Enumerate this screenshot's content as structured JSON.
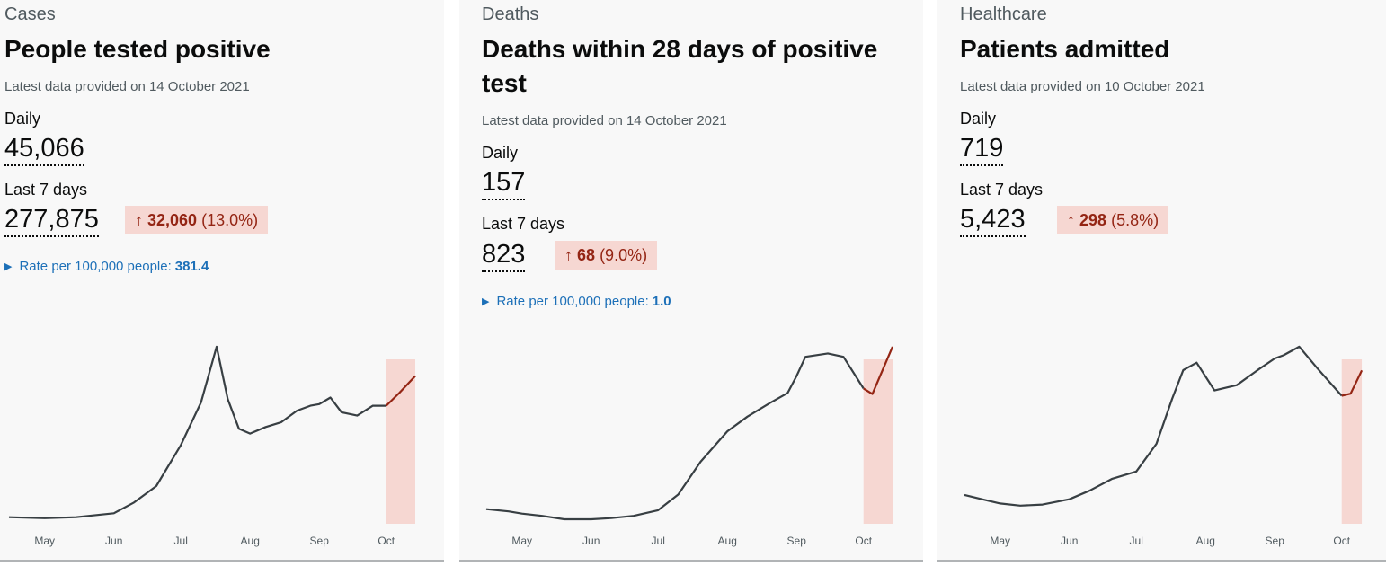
{
  "cards": [
    {
      "caption": "Cases",
      "heading": "People tested positive",
      "updated": "Latest data provided on 14 October 2021",
      "daily_label": "Daily",
      "daily_value": "45,066",
      "week_label": "Last 7 days",
      "week_value": "277,875",
      "change_arrow": "↑",
      "change_value": "32,060",
      "change_percent": "(13.0%)",
      "rate_label": "Rate per 100,000 people:",
      "rate_value": "381.4",
      "icons": {
        "rate_toggle": "triangle-right-icon",
        "change_arrow": "arrow-up-icon"
      }
    },
    {
      "caption": "Deaths",
      "heading": "Deaths within 28 days of positive test",
      "updated": "Latest data provided on 14 October 2021",
      "daily_label": "Daily",
      "daily_value": "157",
      "week_label": "Last 7 days",
      "week_value": "823",
      "change_arrow": "↑",
      "change_value": "68",
      "change_percent": "(9.0%)",
      "rate_label": "Rate per 100,000 people:",
      "rate_value": "1.0",
      "icons": {
        "rate_toggle": "triangle-right-icon",
        "change_arrow": "arrow-up-icon"
      }
    },
    {
      "caption": "Healthcare",
      "heading": "Patients admitted",
      "updated": "Latest data provided on 10 October 2021",
      "daily_label": "Daily",
      "daily_value": "719",
      "week_label": "Last 7 days",
      "week_value": "5,423",
      "change_arrow": "↑",
      "change_value": "298",
      "change_percent": "(5.8%)",
      "icons": {
        "change_arrow": "arrow-up-icon"
      }
    }
  ],
  "colors": {
    "line": "#383f43",
    "highlight_line": "#942514",
    "highlight_fill": "#f6d7d2",
    "link": "#1d70b8",
    "card_bg": "#f8f8f8"
  },
  "chart_data": [
    {
      "type": "line",
      "title": "People tested positive",
      "x_ticks": [
        "May",
        "Jun",
        "Jul",
        "Aug",
        "Sep",
        "Oct"
      ],
      "x_range": [
        "2021-04-15",
        "2021-10-14"
      ],
      "highlight_range": [
        "2021-10-01",
        "2021-10-14"
      ],
      "series": [
        {
          "x": [
            "2021-04-15",
            "2021-05-01",
            "2021-05-15",
            "2021-06-01",
            "2021-06-10",
            "2021-06-20",
            "2021-07-01",
            "2021-07-10",
            "2021-07-17",
            "2021-07-22",
            "2021-07-27",
            "2021-08-01",
            "2021-08-08",
            "2021-08-15",
            "2021-08-22",
            "2021-08-28",
            "2021-09-01",
            "2021-09-06",
            "2021-09-11",
            "2021-09-18",
            "2021-09-25",
            "2021-10-01",
            "2021-10-07",
            "2021-10-14"
          ],
          "y": [
            2000,
            1700,
            2000,
            3200,
            6500,
            11500,
            24000,
            37000,
            54000,
            38000,
            29000,
            27500,
            29500,
            31000,
            34500,
            36000,
            36500,
            38500,
            34000,
            33000,
            36000,
            36000,
            40000,
            45066
          ]
        }
      ]
    },
    {
      "type": "line",
      "title": "Deaths within 28 days of positive test",
      "x_ticks": [
        "May",
        "Jun",
        "Jul",
        "Aug",
        "Sep",
        "Oct"
      ],
      "x_range": [
        "2021-04-15",
        "2021-10-14"
      ],
      "highlight_range": [
        "2021-10-01",
        "2021-10-14"
      ],
      "series": [
        {
          "x": [
            "2021-04-15",
            "2021-04-25",
            "2021-05-01",
            "2021-05-10",
            "2021-05-20",
            "2021-06-01",
            "2021-06-10",
            "2021-06-20",
            "2021-07-01",
            "2021-07-10",
            "2021-07-20",
            "2021-08-01",
            "2021-08-10",
            "2021-08-20",
            "2021-08-28",
            "2021-09-01",
            "2021-09-05",
            "2021-09-15",
            "2021-09-22",
            "2021-10-01",
            "2021-10-05",
            "2021-10-14"
          ],
          "y": [
            13,
            11,
            9,
            7,
            4,
            4,
            5,
            7,
            12,
            26,
            55,
            82,
            95,
            107,
            116,
            131,
            148,
            151,
            148,
            120,
            115,
            157
          ]
        }
      ]
    },
    {
      "type": "line",
      "title": "Patients admitted",
      "x_ticks": [
        "May",
        "Jun",
        "Jul",
        "Aug",
        "Sep",
        "Oct"
      ],
      "x_range": [
        "2021-04-15",
        "2021-10-14"
      ],
      "highlight_range": [
        "2021-10-01",
        "2021-10-10"
      ],
      "series": [
        {
          "x": [
            "2021-04-15",
            "2021-04-25",
            "2021-05-01",
            "2021-05-10",
            "2021-05-20",
            "2021-06-01",
            "2021-06-10",
            "2021-06-20",
            "2021-07-01",
            "2021-07-10",
            "2021-07-17",
            "2021-07-22",
            "2021-07-28",
            "2021-08-05",
            "2021-08-15",
            "2021-08-25",
            "2021-09-01",
            "2021-09-05",
            "2021-09-12",
            "2021-09-20",
            "2021-10-01",
            "2021-10-05",
            "2021-10-10"
          ],
          "y": [
            135,
            110,
            95,
            85,
            90,
            115,
            155,
            210,
            245,
            375,
            585,
            720,
            755,
            625,
            650,
            725,
            775,
            790,
            830,
            730,
            600,
            610,
            719
          ]
        }
      ]
    }
  ]
}
